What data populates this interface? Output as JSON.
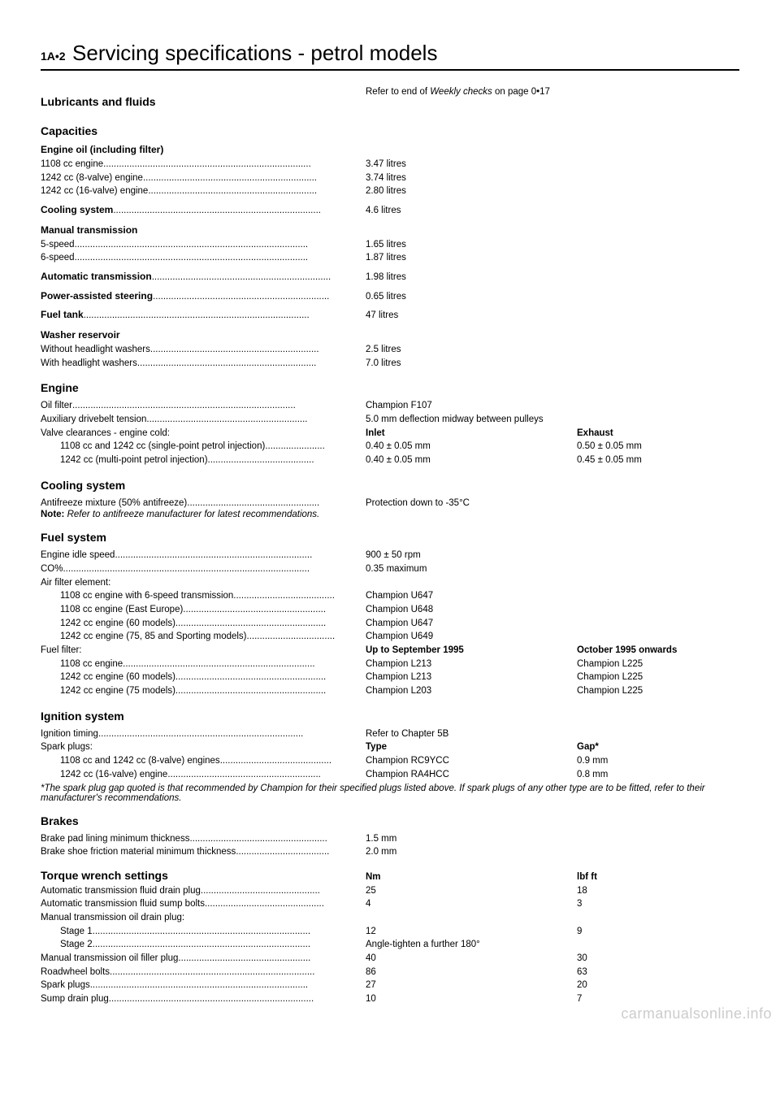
{
  "page_code": "1A•2",
  "main_title": "Servicing specifications - petrol models",
  "lubricants_heading": "Lubricants and fluids",
  "lubricants_ref_pre": "Refer to end of ",
  "lubricants_ref_ital": "Weekly checks",
  "lubricants_ref_post": " on page 0•17",
  "capacities_heading": "Capacities",
  "engine_oil_heading": "Engine oil (including filter)",
  "engine_oil_rows": [
    {
      "l": "1108 cc engine",
      "v": "3.47 litres"
    },
    {
      "l": "1242 cc (8-valve) engine",
      "v": "3.74 litres"
    },
    {
      "l": "1242 cc (16-valve) engine",
      "v": "2.80 litres"
    }
  ],
  "cooling_capacity": {
    "l": "Cooling system",
    "v": "4.6 litres"
  },
  "manual_trans_heading": "Manual transmission",
  "manual_trans_rows": [
    {
      "l": "5-speed",
      "v": "1.65 litres"
    },
    {
      "l": "6-speed",
      "v": "1.87 litres"
    }
  ],
  "auto_trans": {
    "l": "Automatic transmission",
    "v": "1.98 litres"
  },
  "power_steering": {
    "l": "Power-assisted steering",
    "v": "0.65 litres"
  },
  "fuel_tank": {
    "l": "Fuel tank",
    "v": "47 litres"
  },
  "washer_heading": "Washer reservoir",
  "washer_rows": [
    {
      "l": "Without headlight washers",
      "v": "2.5 litres"
    },
    {
      "l": "With headlight washers",
      "v": "7.0 litres"
    }
  ],
  "engine_heading": "Engine",
  "oil_filter": {
    "l": "Oil filter",
    "v": "Champion F107"
  },
  "aux_drivebelt": {
    "l": "Auxiliary drivebelt tension",
    "v": "5.0 mm deflection midway between pulleys"
  },
  "valve_clearance_label": "Valve clearances - engine cold:",
  "valve_head1": "Inlet",
  "valve_head2": "Exhaust",
  "valve_rows": [
    {
      "l": "1108 cc and 1242 cc (single-point petrol injection)",
      "v1": "0.40 ± 0.05 mm",
      "v2": "0.50 ± 0.05 mm"
    },
    {
      "l": "1242 cc (multi-point petrol injection)",
      "v1": "0.40 ± 0.05 mm",
      "v2": "0.45 ± 0.05 mm"
    }
  ],
  "cooling_sys_heading": "Cooling system",
  "antifreeze": {
    "l": "Antifreeze mixture (50% antifreeze)",
    "v": "Protection down to -35°C"
  },
  "cooling_note_pre": "Note: ",
  "cooling_note": "Refer to antifreeze manufacturer for latest recommendations.",
  "fuel_sys_heading": "Fuel system",
  "idle_speed": {
    "l": "Engine idle speed",
    "v": "900 ± 50 rpm"
  },
  "co": {
    "l": "CO%",
    "v": "0.35 maximum"
  },
  "air_filter_label": "Air filter element:",
  "air_filter_rows": [
    {
      "l": "1108 cc engine with 6-speed transmission",
      "v": "Champion U647"
    },
    {
      "l": "1108 cc engine (East Europe)",
      "v": "Champion U648"
    },
    {
      "l": "1242 cc engine (60 models)",
      "v": "Champion U647"
    },
    {
      "l": "1242 cc engine (75, 85 and Sporting models)",
      "v": "Champion U649"
    }
  ],
  "fuel_filter_label": "Fuel filter:",
  "fuel_filter_head1": "Up to September 1995",
  "fuel_filter_head2": "October 1995 onwards",
  "fuel_filter_rows": [
    {
      "l": "1108 cc engine",
      "v1": "Champion L213",
      "v2": "Champion L225"
    },
    {
      "l": "1242 cc engine (60 models)",
      "v1": "Champion L213",
      "v2": "Champion L225"
    },
    {
      "l": "1242 cc engine (75 models)",
      "v1": "Champion L203",
      "v2": "Champion L225"
    }
  ],
  "ignition_heading": "Ignition system",
  "ignition_timing": {
    "l": "Ignition timing",
    "v": "Refer to Chapter 5B"
  },
  "spark_plugs_label": "Spark plugs:",
  "spark_head1": "Type",
  "spark_head2": "Gap*",
  "spark_rows": [
    {
      "l": "1108 cc and 1242 cc (8-valve) engines",
      "v1": "Champion RC9YCC",
      "v2": "0.9 mm"
    },
    {
      "l": "1242 cc (16-valve) engine",
      "v1": "Champion RA4HCC",
      "v2": "0.8 mm"
    }
  ],
  "spark_note": "*The spark plug gap quoted is that recommended by Champion for their specified plugs listed above. If spark plugs of any other type are to be fitted, refer to their manufacturer's recommendations.",
  "brakes_heading": "Brakes",
  "brake_rows": [
    {
      "l": "Brake pad lining minimum thickness",
      "v": "1.5 mm"
    },
    {
      "l": "Brake shoe friction material minimum thickness",
      "v": "2.0 mm"
    }
  ],
  "torque_heading": "Torque wrench settings",
  "torque_head1": "Nm",
  "torque_head2": "lbf ft",
  "torque_rows": [
    {
      "l": "Automatic transmission fluid drain plug",
      "v1": "25",
      "v2": "18"
    },
    {
      "l": "Automatic transmission fluid sump bolts",
      "v1": "4",
      "v2": "3"
    }
  ],
  "manual_drain_label": "Manual transmission oil drain plug:",
  "stage1": {
    "l": "Stage 1",
    "v1": "12",
    "v2": "9"
  },
  "stage2": {
    "l": "Stage 2",
    "v1": "Angle-tighten a further 180°",
    "v2": ""
  },
  "torque_rows2": [
    {
      "l": "Manual transmission oil filler plug",
      "v1": "40",
      "v2": "30"
    },
    {
      "l": "Roadwheel bolts",
      "v1": "86",
      "v2": "63"
    },
    {
      "l": "Spark plugs",
      "v1": "27",
      "v2": "20"
    },
    {
      "l": "Sump drain plug",
      "v1": "10",
      "v2": "7"
    }
  ],
  "watermark": "carmanualsonline.info"
}
